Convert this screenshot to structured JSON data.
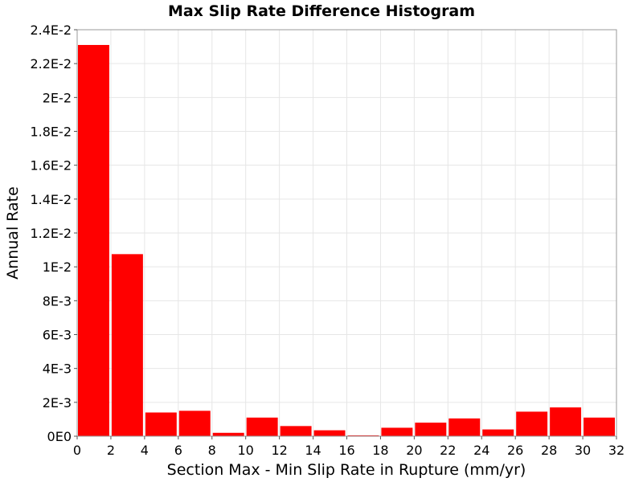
{
  "chart_data": {
    "type": "bar",
    "title": "Max Slip Rate Difference Histogram",
    "xlabel": "Section Max - Min Slip Rate in Rupture (mm/yr)",
    "ylabel": "Annual Rate",
    "xlim": [
      0,
      32
    ],
    "ylim": [
      0,
      0.024
    ],
    "grid": true,
    "x_ticks": [
      {
        "value": 0,
        "label": "0"
      },
      {
        "value": 2,
        "label": "2"
      },
      {
        "value": 4,
        "label": "4"
      },
      {
        "value": 6,
        "label": "6"
      },
      {
        "value": 8,
        "label": "8"
      },
      {
        "value": 10,
        "label": "10"
      },
      {
        "value": 12,
        "label": "12"
      },
      {
        "value": 14,
        "label": "14"
      },
      {
        "value": 16,
        "label": "16"
      },
      {
        "value": 18,
        "label": "18"
      },
      {
        "value": 20,
        "label": "20"
      },
      {
        "value": 22,
        "label": "22"
      },
      {
        "value": 24,
        "label": "24"
      },
      {
        "value": 26,
        "label": "26"
      },
      {
        "value": 28,
        "label": "28"
      },
      {
        "value": 30,
        "label": "30"
      },
      {
        "value": 32,
        "label": "32"
      }
    ],
    "y_ticks": [
      {
        "value": 0,
        "label": "0E0"
      },
      {
        "value": 0.002,
        "label": "2E-3"
      },
      {
        "value": 0.004,
        "label": "4E-3"
      },
      {
        "value": 0.006,
        "label": "6E-3"
      },
      {
        "value": 0.008,
        "label": "8E-3"
      },
      {
        "value": 0.01,
        "label": "1E-2"
      },
      {
        "value": 0.012,
        "label": "1.2E-2"
      },
      {
        "value": 0.014,
        "label": "1.4E-2"
      },
      {
        "value": 0.016,
        "label": "1.6E-2"
      },
      {
        "value": 0.018,
        "label": "1.8E-2"
      },
      {
        "value": 0.02,
        "label": "2E-2"
      },
      {
        "value": 0.022,
        "label": "2.2E-2"
      },
      {
        "value": 0.024,
        "label": "2.4E-2"
      }
    ],
    "bin_width": 2,
    "bars": [
      {
        "x": 1,
        "value": 0.0231
      },
      {
        "x": 3,
        "value": 0.01075
      },
      {
        "x": 5,
        "value": 0.0014
      },
      {
        "x": 7,
        "value": 0.0015
      },
      {
        "x": 9,
        "value": 0.0002
      },
      {
        "x": 11,
        "value": 0.0011
      },
      {
        "x": 13,
        "value": 0.0006
      },
      {
        "x": 15,
        "value": 0.00035
      },
      {
        "x": 17,
        "value": 5e-05
      },
      {
        "x": 19,
        "value": 0.0005
      },
      {
        "x": 21,
        "value": 0.0008
      },
      {
        "x": 23,
        "value": 0.00105
      },
      {
        "x": 25,
        "value": 0.0004
      },
      {
        "x": 27,
        "value": 0.00145
      },
      {
        "x": 29,
        "value": 0.0017
      },
      {
        "x": 31,
        "value": 0.0011
      }
    ],
    "bar_color": "#ff0000"
  }
}
